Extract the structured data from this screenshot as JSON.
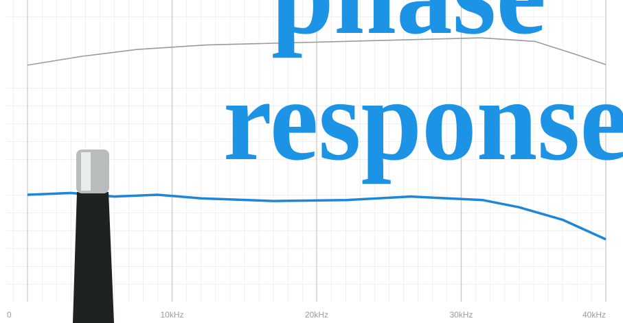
{
  "chart_data": {
    "type": "line",
    "annotations": [
      "phase",
      "response"
    ],
    "xlim": [
      0,
      40
    ],
    "xticks": [
      0,
      {
        "value": 10,
        "label": "10kHz"
      },
      {
        "value": 20,
        "label": "20kHz"
      },
      {
        "value": 30,
        "label": "30kHz"
      },
      {
        "value": 40,
        "label": "40kHz"
      }
    ],
    "ylim": [
      0,
      17
    ],
    "grid": true,
    "series": [
      {
        "color": "#1d86d8",
        "x": [
          0,
          3,
          6,
          9,
          12,
          17,
          22,
          26.5,
          31.5,
          34,
          37,
          40
        ],
        "values": [
          6,
          6.1,
          5.9,
          6,
          5.8,
          5.65,
          5.7,
          5.9,
          5.7,
          5.3,
          4.6,
          3.5
        ]
      },
      {
        "color": "#9a9a9a",
        "x": [
          0,
          3.8,
          7.6,
          12.35,
          17.1,
          21.85,
          26.6,
          31.35,
          35.1,
          38,
          40
        ],
        "values": [
          13.27,
          13.77,
          14.15,
          14.4,
          14.5,
          14.6,
          14.7,
          14.8,
          14.6,
          13.85,
          13.3
        ]
      }
    ]
  }
}
